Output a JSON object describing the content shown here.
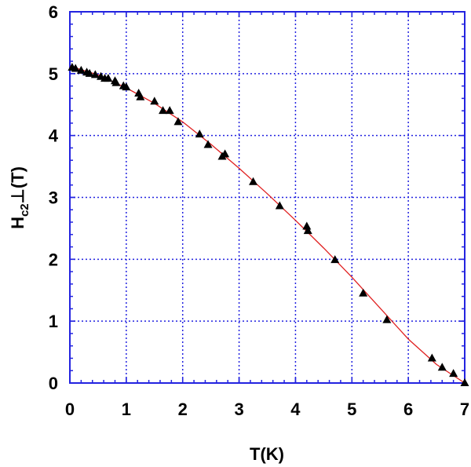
{
  "chart_data": {
    "type": "scatter",
    "title": "",
    "xlabel": "T(K)",
    "ylabel": "H_c2⊥(T)",
    "ylabel_parts": {
      "main": "H",
      "sub": "c2",
      "perp": "⊥",
      "rest": "(T)"
    },
    "xlim": [
      0,
      7
    ],
    "ylim": [
      0,
      6
    ],
    "x_ticks": [
      0,
      1,
      2,
      3,
      4,
      5,
      6,
      7
    ],
    "y_ticks": [
      0,
      1,
      2,
      3,
      4,
      5,
      6
    ],
    "x_tick_labels": [
      "0",
      "1",
      "2",
      "3",
      "4",
      "5",
      "6",
      "7"
    ],
    "y_tick_labels": [
      "0",
      "1",
      "2",
      "3",
      "4",
      "5",
      "6"
    ],
    "minor_ticks_per_major": 4,
    "grid": true,
    "legend": null,
    "colors": {
      "frame": "#2323e0",
      "grid": "#2323e0",
      "fit_line": "#e02020",
      "markers": "#000000"
    },
    "series": [
      {
        "name": "data",
        "kind": "scatter",
        "marker": "triangle-up",
        "x": [
          0.04,
          0.1,
          0.2,
          0.3,
          0.35,
          0.45,
          0.55,
          0.62,
          0.68,
          0.8,
          0.82,
          0.95,
          1.0,
          1.22,
          1.25,
          1.5,
          1.65,
          1.77,
          1.92,
          2.3,
          2.45,
          2.7,
          2.75,
          3.25,
          3.72,
          4.2,
          4.22,
          4.7,
          5.2,
          5.62,
          6.42,
          6.6,
          6.8,
          7.0
        ],
        "y": [
          5.1,
          5.08,
          5.05,
          5.02,
          5.0,
          4.98,
          4.95,
          4.92,
          4.92,
          4.88,
          4.85,
          4.8,
          4.78,
          4.68,
          4.62,
          4.55,
          4.4,
          4.4,
          4.22,
          4.02,
          3.85,
          3.66,
          3.7,
          3.25,
          2.86,
          2.53,
          2.46,
          1.99,
          1.45,
          1.02,
          0.4,
          0.25,
          0.15,
          0.0
        ]
      },
      {
        "name": "fit",
        "kind": "line",
        "x": [
          0.0,
          0.5,
          1.0,
          1.5,
          2.0,
          2.5,
          3.0,
          3.5,
          4.0,
          4.5,
          5.0,
          5.5,
          6.0,
          6.5,
          7.0
        ],
        "y": [
          5.12,
          4.98,
          4.77,
          4.52,
          4.22,
          3.86,
          3.47,
          3.06,
          2.63,
          2.18,
          1.71,
          1.21,
          0.71,
          0.3,
          0.0
        ]
      }
    ]
  }
}
